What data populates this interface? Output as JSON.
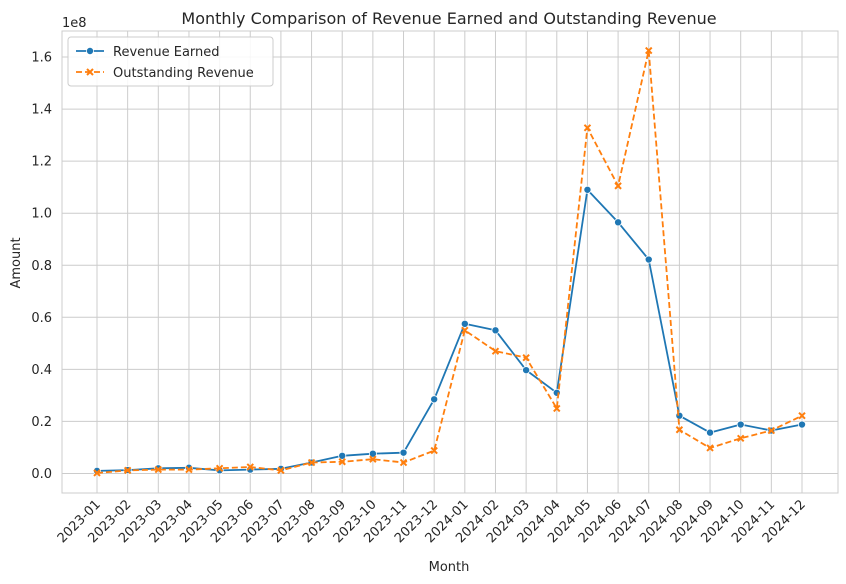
{
  "chart_data": {
    "type": "line",
    "title": "Monthly Comparison of Revenue Earned and Outstanding Revenue",
    "xlabel": "Month",
    "ylabel": "Amount",
    "y_scale_label": "1e8",
    "ylim": [
      -0.075,
      1.7
    ],
    "y_ticks": [
      0.0,
      0.2,
      0.4,
      0.6,
      0.8,
      1.0,
      1.2,
      1.4,
      1.6
    ],
    "y_tick_labels": [
      "0.0",
      "0.2",
      "0.4",
      "0.6",
      "0.8",
      "1.0",
      "1.2",
      "1.4",
      "1.6"
    ],
    "grid": true,
    "legend_position": "top-left",
    "categories": [
      "2023-01",
      "2023-02",
      "2023-03",
      "2023-04",
      "2023-05",
      "2023-06",
      "2023-07",
      "2023-08",
      "2023-09",
      "2023-10",
      "2023-11",
      "2023-12",
      "2024-01",
      "2024-02",
      "2024-03",
      "2024-04",
      "2024-05",
      "2024-06",
      "2024-07",
      "2024-08",
      "2024-09",
      "2024-10",
      "2024-11",
      "2024-12"
    ],
    "series": [
      {
        "name": "Revenue Earned",
        "color": "#1f77b4",
        "marker": "circle",
        "line_style": "solid",
        "values": [
          0.01,
          0.013,
          0.02,
          0.022,
          0.012,
          0.015,
          0.018,
          0.042,
          0.068,
          0.076,
          0.08,
          0.285,
          0.575,
          0.55,
          0.397,
          0.31,
          1.09,
          0.965,
          0.822,
          0.222,
          0.157,
          0.188,
          0.165,
          0.188
        ]
      },
      {
        "name": "Outstanding Revenue",
        "color": "#ff7f0e",
        "marker": "x",
        "line_style": "dashed",
        "values": [
          0.002,
          0.012,
          0.015,
          0.015,
          0.02,
          0.025,
          0.012,
          0.042,
          0.045,
          0.055,
          0.042,
          0.088,
          0.55,
          0.47,
          0.445,
          0.25,
          1.328,
          1.105,
          1.625,
          0.168,
          0.098,
          0.135,
          0.165,
          0.222
        ]
      }
    ]
  }
}
